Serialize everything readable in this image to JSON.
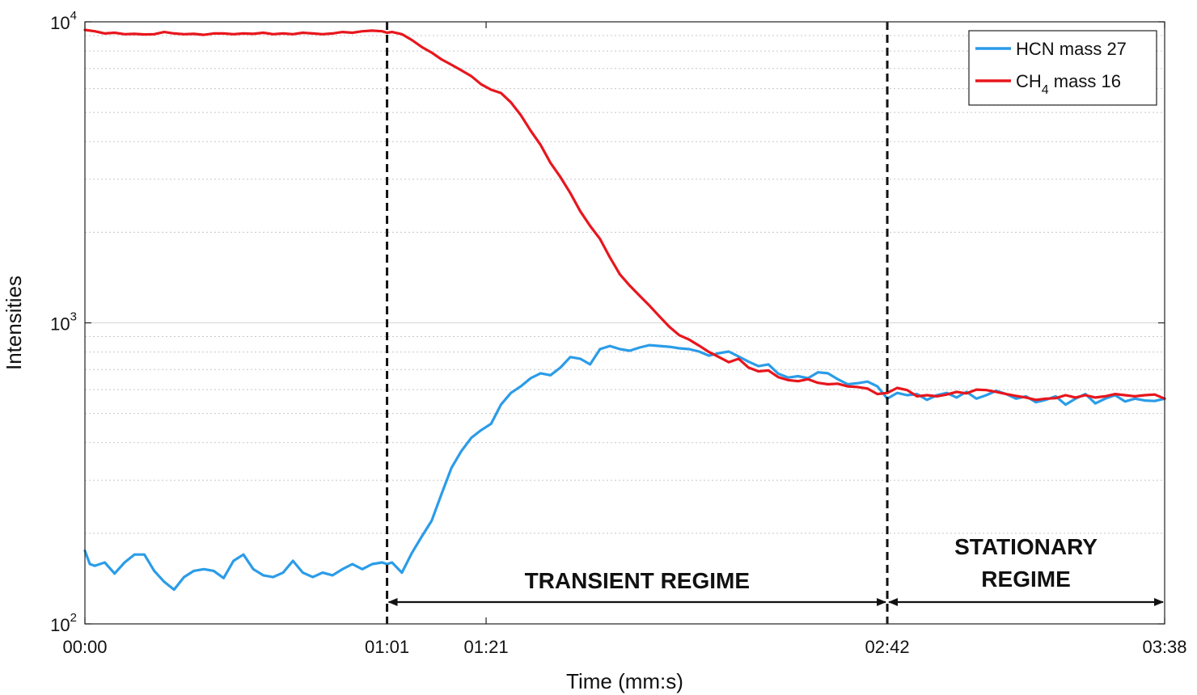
{
  "chart_data": {
    "type": "line",
    "xlabel": "Time (mm:s)",
    "ylabel": "Intensities",
    "y_scale": "log",
    "ylim": [
      100,
      10000
    ],
    "x_unit": "seconds",
    "xlim": [
      0,
      218
    ],
    "grid": "horizontal dotted minor, solid major",
    "legend_position": "top-right",
    "x_ticks": [
      {
        "value": 0,
        "label": "00:00"
      },
      {
        "value": 61,
        "label": "01:01"
      },
      {
        "value": 81,
        "label": "01:21"
      },
      {
        "value": 162,
        "label": "02:42"
      },
      {
        "value": 218,
        "label": "03:38"
      }
    ],
    "y_ticks": [
      {
        "value": 100,
        "base": "10",
        "exp": "2"
      },
      {
        "value": 1000,
        "base": "10",
        "exp": "3"
      },
      {
        "value": 10000,
        "base": "10",
        "exp": "4"
      }
    ],
    "vlines": [
      61,
      162
    ],
    "annotations": [
      {
        "lines": [
          "TRANSIENT REGIME"
        ],
        "x_from": 61,
        "x_to": 162
      },
      {
        "lines": [
          "STATIONARY",
          "REGIME"
        ],
        "x_from": 162,
        "x_to": 218
      }
    ],
    "series": [
      {
        "name": "HCN mass 27",
        "legend_main": "HCN mass 27",
        "color": "#2b9ce8",
        "points": [
          [
            0,
            175
          ],
          [
            1,
            158
          ],
          [
            2,
            156
          ],
          [
            4,
            160
          ],
          [
            6,
            147
          ],
          [
            8,
            160
          ],
          [
            10,
            170
          ],
          [
            12,
            170
          ],
          [
            14,
            150
          ],
          [
            16,
            138
          ],
          [
            18,
            130
          ],
          [
            20,
            143
          ],
          [
            22,
            150
          ],
          [
            24,
            152
          ],
          [
            26,
            150
          ],
          [
            28,
            142
          ],
          [
            30,
            162
          ],
          [
            32,
            170
          ],
          [
            34,
            152
          ],
          [
            36,
            145
          ],
          [
            38,
            143
          ],
          [
            40,
            148
          ],
          [
            42,
            162
          ],
          [
            44,
            148
          ],
          [
            46,
            143
          ],
          [
            48,
            148
          ],
          [
            50,
            145
          ],
          [
            52,
            152
          ],
          [
            54,
            158
          ],
          [
            56,
            152
          ],
          [
            58,
            158
          ],
          [
            60,
            160
          ],
          [
            61,
            158
          ],
          [
            62,
            160
          ],
          [
            64,
            148
          ],
          [
            66,
            172
          ],
          [
            68,
            195
          ],
          [
            70,
            220
          ],
          [
            72,
            270
          ],
          [
            74,
            330
          ],
          [
            76,
            375
          ],
          [
            78,
            415
          ],
          [
            80,
            440
          ],
          [
            82,
            462
          ],
          [
            84,
            535
          ],
          [
            86,
            585
          ],
          [
            88,
            615
          ],
          [
            90,
            655
          ],
          [
            92,
            680
          ],
          [
            94,
            670
          ],
          [
            96,
            710
          ],
          [
            98,
            770
          ],
          [
            100,
            760
          ],
          [
            102,
            728
          ],
          [
            104,
            818
          ],
          [
            106,
            838
          ],
          [
            108,
            818
          ],
          [
            110,
            808
          ],
          [
            112,
            828
          ],
          [
            114,
            843
          ],
          [
            116,
            838
          ],
          [
            118,
            833
          ],
          [
            120,
            823
          ],
          [
            122,
            818
          ],
          [
            124,
            803
          ],
          [
            126,
            778
          ],
          [
            128,
            793
          ],
          [
            130,
            803
          ],
          [
            132,
            773
          ],
          [
            134,
            743
          ],
          [
            136,
            718
          ],
          [
            138,
            728
          ],
          [
            140,
            678
          ],
          [
            142,
            658
          ],
          [
            144,
            665
          ],
          [
            146,
            655
          ],
          [
            148,
            685
          ],
          [
            150,
            680
          ],
          [
            152,
            650
          ],
          [
            154,
            625
          ],
          [
            156,
            630
          ],
          [
            158,
            638
          ],
          [
            160,
            615
          ],
          [
            162,
            560
          ],
          [
            164,
            585
          ],
          [
            166,
            575
          ],
          [
            168,
            580
          ],
          [
            170,
            555
          ],
          [
            172,
            575
          ],
          [
            174,
            585
          ],
          [
            176,
            565
          ],
          [
            178,
            590
          ],
          [
            180,
            560
          ],
          [
            182,
            575
          ],
          [
            184,
            595
          ],
          [
            186,
            580
          ],
          [
            188,
            560
          ],
          [
            190,
            570
          ],
          [
            192,
            545
          ],
          [
            194,
            555
          ],
          [
            196,
            570
          ],
          [
            198,
            535
          ],
          [
            200,
            560
          ],
          [
            202,
            580
          ],
          [
            204,
            540
          ],
          [
            206,
            560
          ],
          [
            208,
            575
          ],
          [
            210,
            548
          ],
          [
            212,
            560
          ],
          [
            214,
            552
          ],
          [
            216,
            550
          ],
          [
            218,
            560
          ]
        ]
      },
      {
        "name": "CH4 mass 16",
        "legend_main": "CH",
        "legend_sub": "4",
        "legend_rest": " mass 16",
        "color": "#e8161d",
        "points": [
          [
            0,
            9400
          ],
          [
            2,
            9300
          ],
          [
            4,
            9150
          ],
          [
            6,
            9200
          ],
          [
            8,
            9100
          ],
          [
            10,
            9120
          ],
          [
            12,
            9080
          ],
          [
            14,
            9100
          ],
          [
            16,
            9250
          ],
          [
            18,
            9150
          ],
          [
            20,
            9100
          ],
          [
            22,
            9120
          ],
          [
            24,
            9050
          ],
          [
            26,
            9150
          ],
          [
            28,
            9150
          ],
          [
            30,
            9100
          ],
          [
            32,
            9150
          ],
          [
            34,
            9120
          ],
          [
            36,
            9200
          ],
          [
            38,
            9100
          ],
          [
            40,
            9150
          ],
          [
            42,
            9100
          ],
          [
            44,
            9200
          ],
          [
            46,
            9150
          ],
          [
            48,
            9100
          ],
          [
            50,
            9150
          ],
          [
            52,
            9250
          ],
          [
            54,
            9200
          ],
          [
            56,
            9300
          ],
          [
            58,
            9350
          ],
          [
            60,
            9300
          ],
          [
            61,
            9200
          ],
          [
            62,
            9250
          ],
          [
            64,
            9100
          ],
          [
            66,
            8700
          ],
          [
            68,
            8250
          ],
          [
            70,
            7900
          ],
          [
            72,
            7500
          ],
          [
            74,
            7200
          ],
          [
            76,
            6900
          ],
          [
            78,
            6600
          ],
          [
            80,
            6200
          ],
          [
            82,
            5950
          ],
          [
            84,
            5800
          ],
          [
            86,
            5400
          ],
          [
            88,
            4900
          ],
          [
            90,
            4350
          ],
          [
            92,
            3900
          ],
          [
            94,
            3400
          ],
          [
            96,
            3050
          ],
          [
            98,
            2700
          ],
          [
            100,
            2350
          ],
          [
            102,
            2100
          ],
          [
            104,
            1900
          ],
          [
            106,
            1650
          ],
          [
            108,
            1450
          ],
          [
            110,
            1330
          ],
          [
            112,
            1230
          ],
          [
            114,
            1140
          ],
          [
            116,
            1050
          ],
          [
            118,
            970
          ],
          [
            120,
            910
          ],
          [
            122,
            880
          ],
          [
            124,
            840
          ],
          [
            126,
            800
          ],
          [
            128,
            770
          ],
          [
            130,
            740
          ],
          [
            132,
            760
          ],
          [
            134,
            710
          ],
          [
            136,
            690
          ],
          [
            138,
            695
          ],
          [
            140,
            660
          ],
          [
            142,
            645
          ],
          [
            144,
            640
          ],
          [
            146,
            650
          ],
          [
            148,
            632
          ],
          [
            150,
            625
          ],
          [
            152,
            628
          ],
          [
            154,
            615
          ],
          [
            156,
            612
          ],
          [
            158,
            605
          ],
          [
            160,
            580
          ],
          [
            162,
            585
          ],
          [
            164,
            608
          ],
          [
            166,
            598
          ],
          [
            168,
            570
          ],
          [
            170,
            575
          ],
          [
            172,
            570
          ],
          [
            174,
            578
          ],
          [
            176,
            590
          ],
          [
            178,
            583
          ],
          [
            180,
            600
          ],
          [
            182,
            598
          ],
          [
            184,
            590
          ],
          [
            186,
            580
          ],
          [
            188,
            572
          ],
          [
            190,
            565
          ],
          [
            192,
            555
          ],
          [
            194,
            560
          ],
          [
            196,
            562
          ],
          [
            198,
            575
          ],
          [
            200,
            565
          ],
          [
            202,
            575
          ],
          [
            204,
            565
          ],
          [
            206,
            570
          ],
          [
            208,
            580
          ],
          [
            210,
            575
          ],
          [
            212,
            570
          ],
          [
            214,
            575
          ],
          [
            216,
            578
          ],
          [
            218,
            560
          ]
        ]
      }
    ]
  }
}
